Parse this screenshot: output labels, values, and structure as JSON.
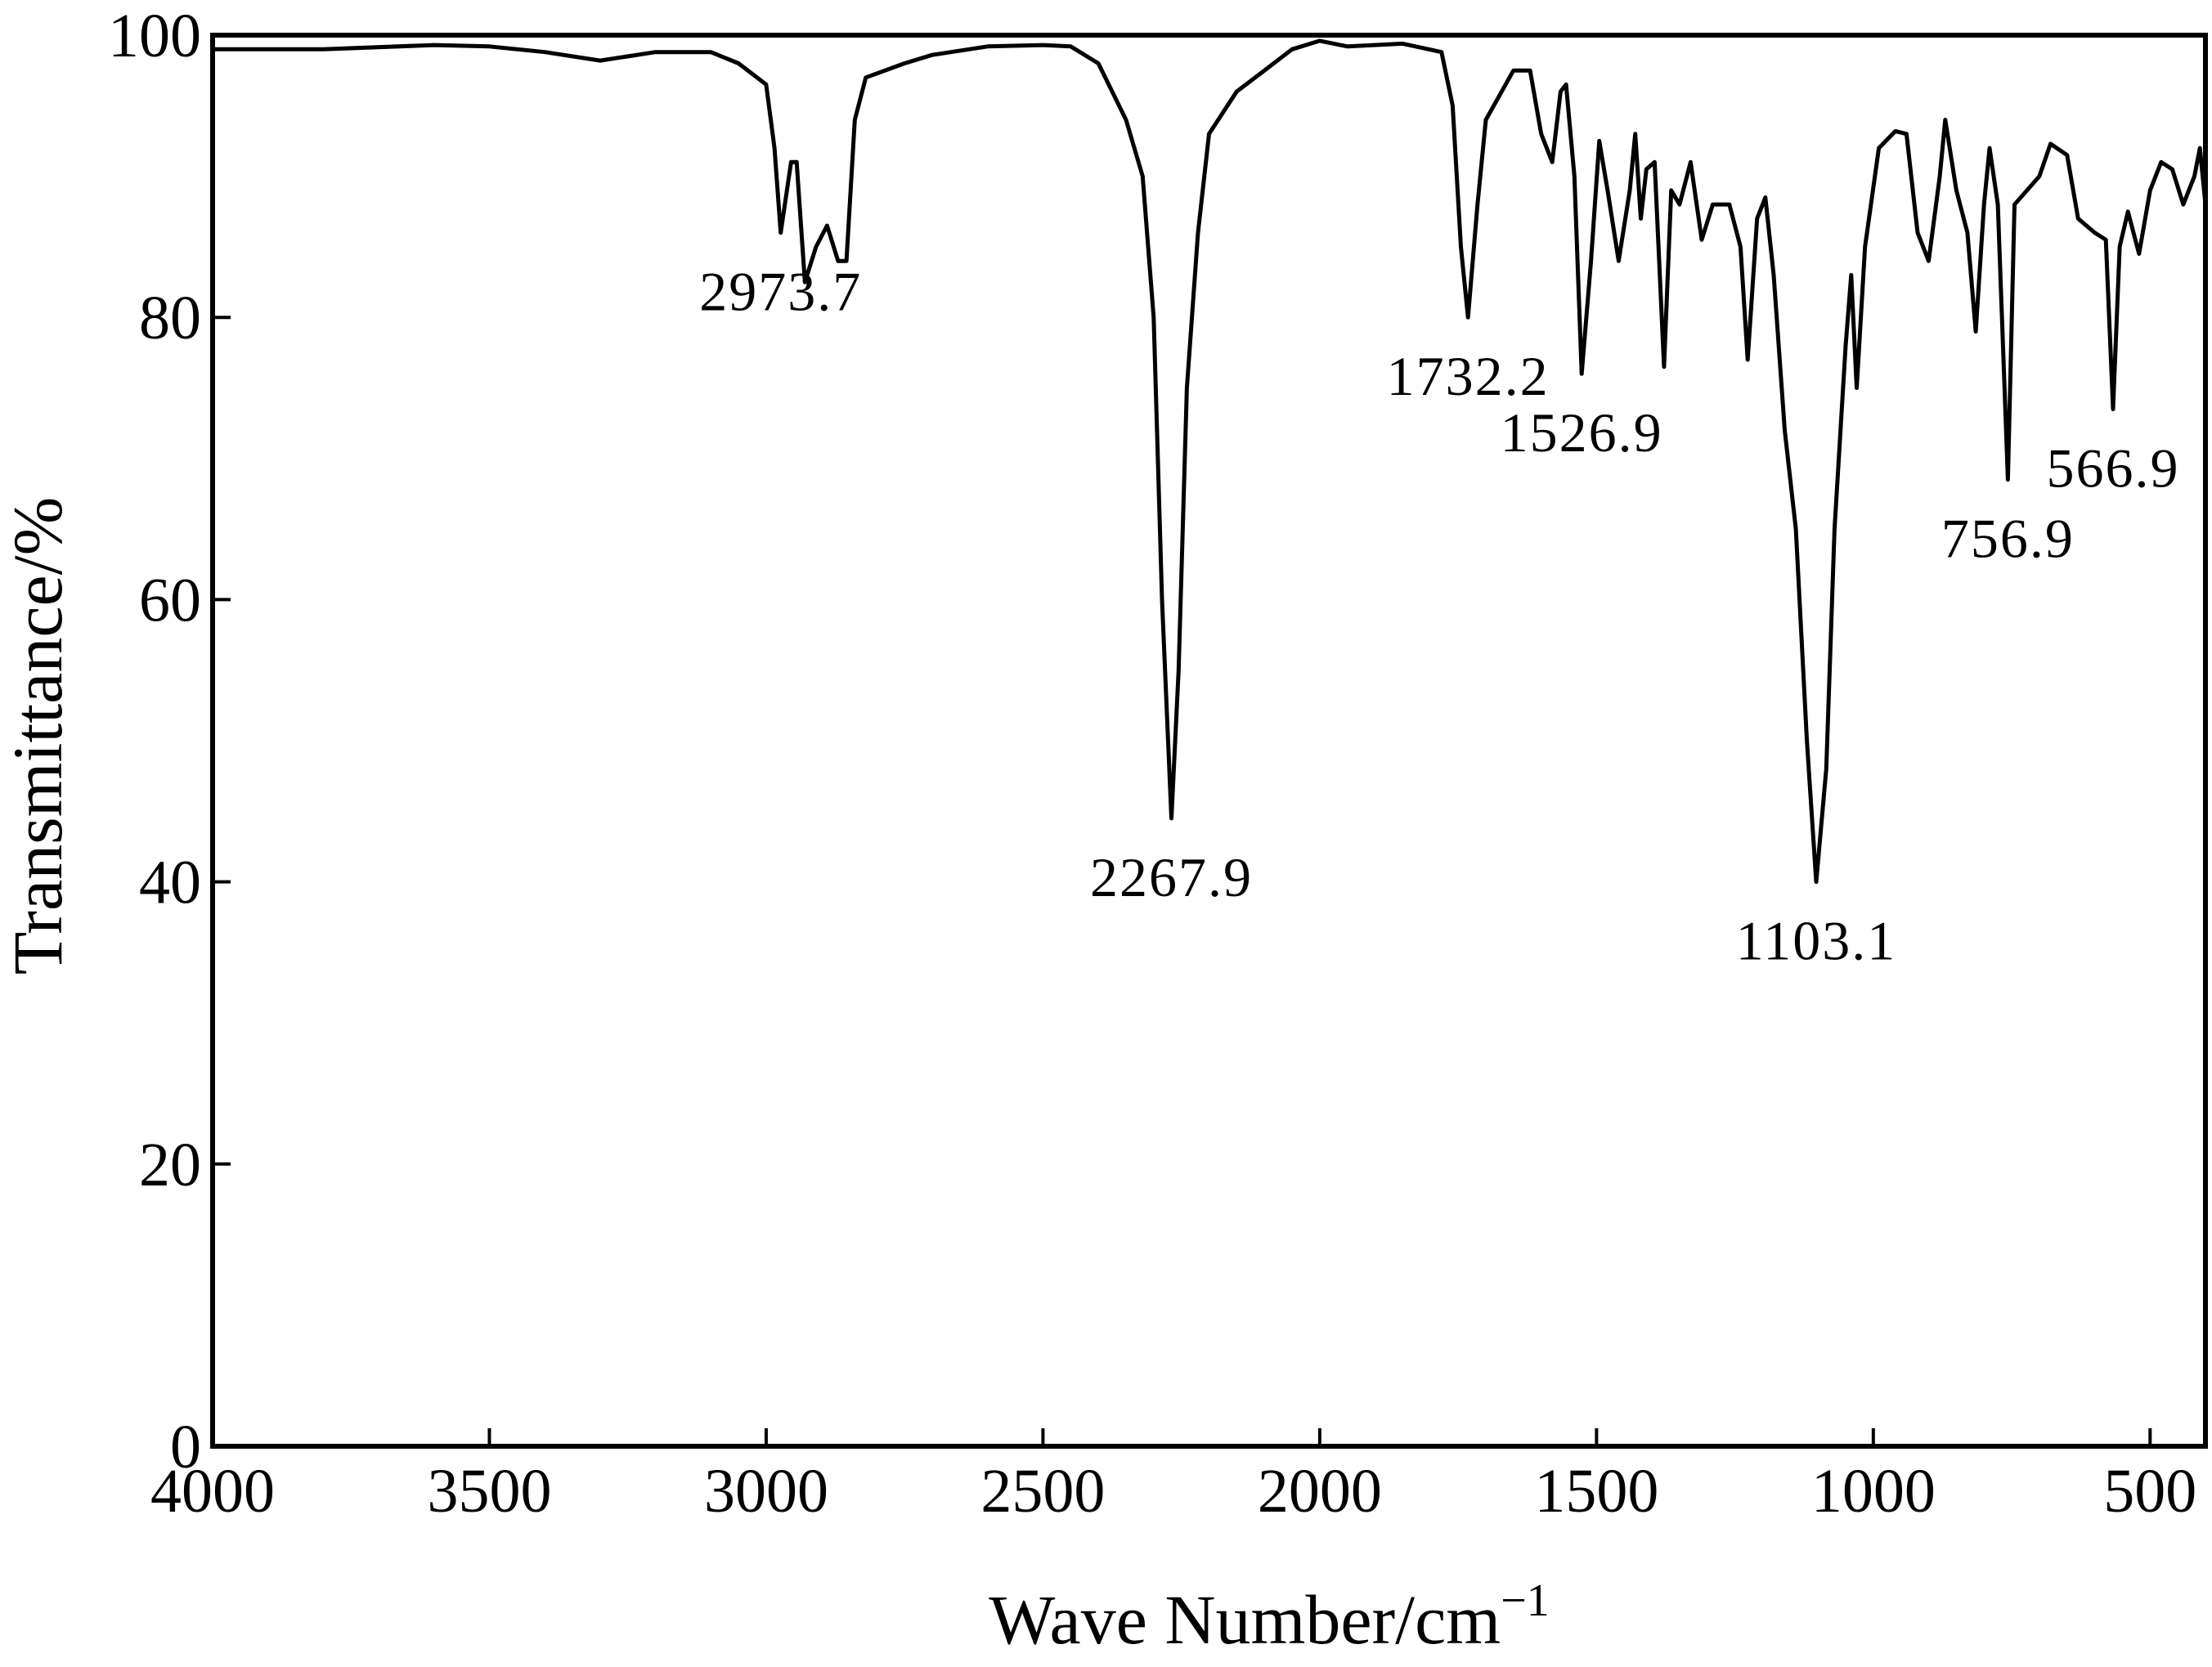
{
  "chart_data": {
    "type": "line",
    "xlabel": "Wave Number/cm",
    "xlabel_sup": "−1",
    "ylabel": "Transmittance/%",
    "xlim": [
      4000,
      400
    ],
    "ylim": [
      0,
      100
    ],
    "xticks": [
      4000,
      3500,
      3000,
      2500,
      2000,
      1500,
      1000,
      500
    ],
    "yticks": [
      0,
      20,
      40,
      60,
      80,
      100
    ],
    "color": "#000000",
    "x": [
      4000,
      3800,
      3600,
      3500,
      3400,
      3300,
      3200,
      3100,
      3050,
      3000,
      2985,
      2973.7,
      2955,
      2945,
      2930,
      2910,
      2890,
      2870,
      2855,
      2840,
      2820,
      2750,
      2700,
      2600,
      2500,
      2450,
      2400,
      2350,
      2320,
      2300,
      2285,
      2267.9,
      2255,
      2240,
      2220,
      2200,
      2150,
      2100,
      2050,
      2000,
      1950,
      1850,
      1780,
      1760,
      1745,
      1732.2,
      1715,
      1700,
      1650,
      1620,
      1600,
      1580,
      1565,
      1555,
      1540,
      1526.9,
      1510,
      1495,
      1480,
      1460,
      1440,
      1430,
      1420,
      1410,
      1395,
      1378,
      1365,
      1350,
      1330,
      1310,
      1290,
      1260,
      1240,
      1227,
      1210,
      1195,
      1180,
      1160,
      1140,
      1120,
      1103.1,
      1085,
      1070,
      1050,
      1040,
      1030,
      1015,
      990,
      960,
      940,
      920,
      900,
      880,
      870,
      850,
      830,
      815,
      800,
      790,
      775,
      756.9,
      745,
      700,
      680,
      650,
      630,
      600,
      580,
      566.9,
      555,
      540,
      520,
      500,
      480,
      460,
      440,
      420,
      410,
      400
    ],
    "values": [
      99,
      99,
      99.3,
      99.2,
      98.8,
      98.2,
      98.8,
      98.8,
      98,
      96.5,
      92,
      86,
      91,
      91,
      82.5,
      85,
      86.5,
      84,
      84,
      94,
      97,
      98,
      98.6,
      99.2,
      99.3,
      99.2,
      98,
      94,
      90,
      80,
      60,
      44.5,
      55,
      75,
      86,
      93,
      96,
      97.5,
      99,
      99.6,
      99.2,
      99.4,
      98.8,
      95,
      85,
      80,
      88,
      94,
      97.5,
      97.5,
      93,
      91,
      96,
      96.5,
      90,
      76,
      84,
      92.5,
      89,
      84,
      89,
      93,
      87,
      90.5,
      91,
      76.5,
      89,
      88,
      91,
      85.5,
      88,
      88,
      85,
      77,
      87,
      88.5,
      83,
      72,
      65,
      50,
      40,
      48,
      65,
      78,
      83,
      75,
      85,
      92,
      93.2,
      93,
      86,
      84,
      90,
      94,
      89,
      86,
      79,
      88,
      92,
      88,
      68.5,
      88,
      90,
      92.3,
      91.5,
      87,
      86,
      85.5,
      73.5,
      85,
      87.5,
      84.5,
      89,
      91,
      90.5,
      88,
      90,
      92,
      88
    ],
    "annotations": [
      {
        "label": "2973.7",
        "x": 2973.7,
        "y": 86
      },
      {
        "label": "2267.9",
        "x": 2267.9,
        "y": 44.5
      },
      {
        "label": "1732.2",
        "x": 1732.2,
        "y": 80
      },
      {
        "label": "1526.9",
        "x": 1526.9,
        "y": 76
      },
      {
        "label": "1103.1",
        "x": 1103.1,
        "y": 40
      },
      {
        "label": "756.9",
        "x": 756.9,
        "y": 68.5
      },
      {
        "label": "566.9",
        "x": 566.9,
        "y": 73.5
      }
    ]
  }
}
